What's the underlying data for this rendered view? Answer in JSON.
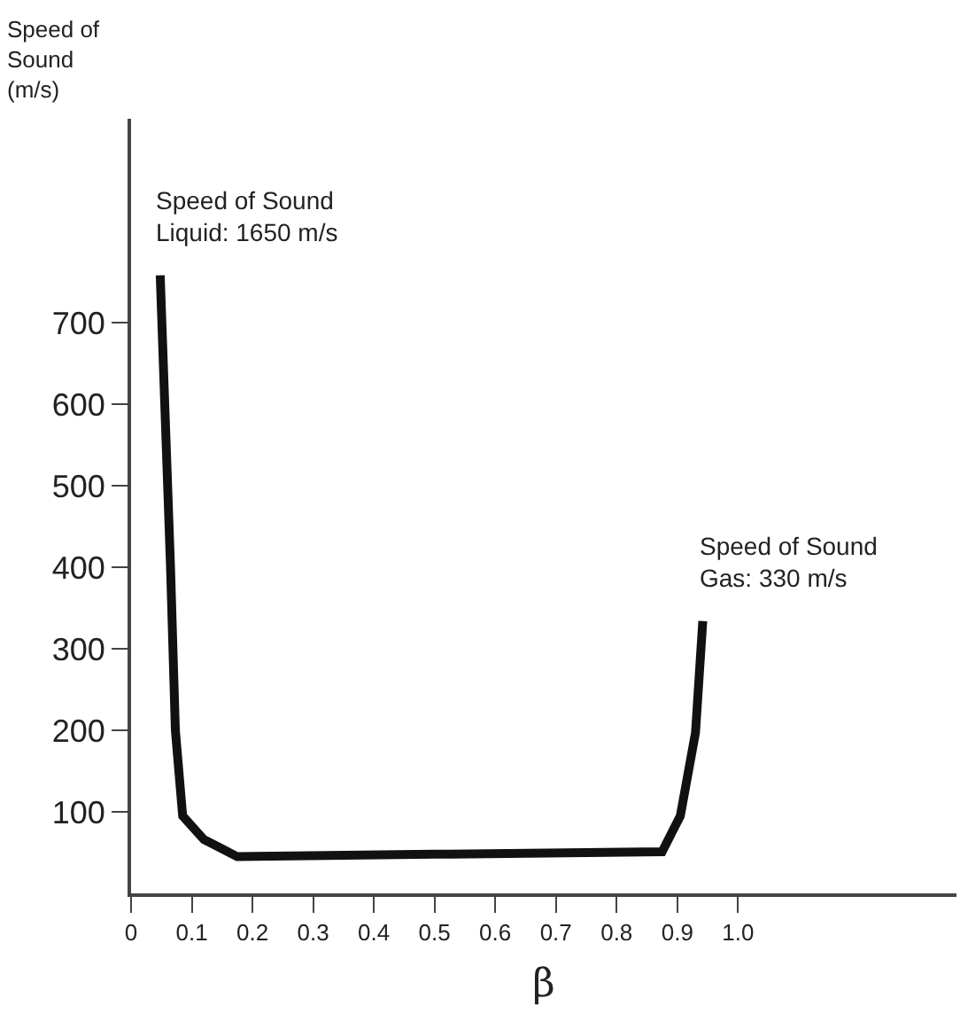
{
  "chart_data": {
    "type": "line",
    "ylabel": "Speed of Sound (m/s)",
    "xlabel": "β",
    "series": [
      {
        "color": "#111111",
        "x": [
          0.048,
          0.065,
          0.073,
          0.085,
          0.12,
          0.175,
          0.5,
          0.875,
          0.905,
          0.93,
          0.942
        ],
        "values": [
          758,
          400,
          200,
          95,
          66,
          45,
          48,
          51,
          95,
          197,
          334
        ]
      }
    ],
    "xlim": [
      0,
      1.36
    ],
    "ylim": [
      0,
      950
    ],
    "xticks": [
      {
        "value": 0,
        "label": "0"
      },
      0.1,
      0.2,
      0.3,
      0.4,
      0.5,
      0.6,
      0.7,
      0.8,
      0.9,
      {
        "value": 1,
        "label": "1.0"
      }
    ],
    "yticks": [
      100,
      200,
      300,
      400,
      500,
      600,
      700
    ],
    "marker": "none",
    "line_style": "solid",
    "annotations": [
      {
        "text": "Speed of Sound Liquid: 1650 m/s",
        "x": 0.048,
        "y": 758
      },
      {
        "text": "Speed of Sound Gas: 330 m/s",
        "x": 0.942,
        "y": 334
      }
    ]
  }
}
